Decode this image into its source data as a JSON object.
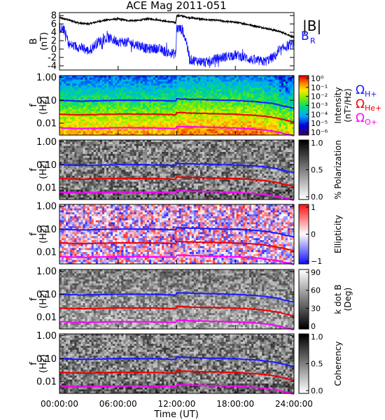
{
  "title": "ACE Mag 2011-051",
  "xlabel": "Time (UT)",
  "x_ticks": [
    "00:00:00",
    "06:00:00",
    "12:00:00",
    "18:00:00",
    "24:00:00"
  ],
  "x_tick_hours": [
    0,
    6,
    12,
    18,
    24
  ],
  "colors": {
    "bmag": "#000000",
    "br": "#1010ff",
    "omega_h": "#1a1aff",
    "omega_he": "#ee0000",
    "omega_o": "#ff00ff"
  },
  "field_legend": [
    {
      "label": "|B|",
      "color": "#000000"
    },
    {
      "label": "B",
      "sub": "R",
      "color": "#1010ff"
    }
  ],
  "gyro_legend": [
    {
      "label": "Ω",
      "sub": "H+",
      "color": "#1a1aff"
    },
    {
      "label": "Ω",
      "sub": "He+",
      "color": "#ee0000"
    },
    {
      "label": "Ω",
      "sub": "O+",
      "color": "#ff00ff"
    }
  ],
  "chart_data": [
    {
      "type": "line",
      "panel": "field",
      "ylabel": "B",
      "yunit": "(nT)",
      "ylim": [
        -5,
        8.7
      ],
      "y_ticks": [
        -4,
        -2,
        0,
        2,
        4,
        6,
        8
      ],
      "xlim_hours": [
        0,
        24
      ],
      "series": [
        {
          "name": "|B|",
          "color": "#000000",
          "x": [
            0,
            0.5,
            1,
            2,
            3,
            4,
            5,
            6,
            7,
            8,
            9,
            10,
            11,
            11.9,
            12.0,
            12.5,
            13,
            14,
            15,
            16,
            17,
            18,
            19,
            20,
            21,
            22,
            22.5,
            23,
            23.5,
            24
          ],
          "y": [
            7.5,
            7.2,
            6.9,
            6.2,
            6.0,
            6.6,
            7.0,
            7.2,
            6.8,
            6.8,
            7.2,
            7.0,
            6.6,
            6.3,
            8.0,
            7.9,
            7.6,
            7.3,
            7.0,
            6.9,
            6.6,
            6.4,
            6.0,
            5.5,
            5.0,
            4.5,
            4.2,
            3.8,
            3.3,
            2.8
          ]
        },
        {
          "name": "B_R",
          "color": "#1010ff",
          "x": [
            0,
            0.5,
            1,
            2,
            3,
            4,
            5,
            6,
            7,
            8,
            9,
            10,
            11,
            11.9,
            12.0,
            12.6,
            13,
            13.3,
            14,
            15,
            16,
            17,
            18,
            19,
            20,
            21,
            22,
            23,
            24
          ],
          "y": [
            5.2,
            4.4,
            1.0,
            0.5,
            -0.5,
            1.8,
            2.6,
            1.8,
            1.6,
            1.0,
            0.0,
            0.2,
            -0.8,
            -1.2,
            5.0,
            4.6,
            1.6,
            -2.5,
            -2.8,
            -3.2,
            -2.4,
            -1.8,
            -1.4,
            -2.0,
            -2.8,
            -3.0,
            -1.8,
            0.4,
            1.4
          ]
        }
      ]
    },
    {
      "type": "heatmap",
      "panel": "power",
      "ylabel": "f",
      "yunit": "(Hz)",
      "ylim": [
        0.003,
        1.2
      ],
      "y_log": true,
      "y_ticks": [
        "1.00",
        "0.10",
        "0.01"
      ],
      "colorbar": {
        "label": "Intensity",
        "unit": "(nT²/Hz)",
        "colormap": "rainbow",
        "ticks": [
          "10⁰",
          "10⁻¹",
          "10⁻²",
          "10⁻³",
          "10⁻⁴",
          "10⁻⁵",
          "10⁻⁶"
        ]
      }
    },
    {
      "type": "heatmap",
      "panel": "polarization",
      "ylabel": "f",
      "yunit": "(Hz)",
      "ylim": [
        0.003,
        1.2
      ],
      "y_log": true,
      "y_ticks": [
        "1.00",
        "0.10",
        "0.01"
      ],
      "colorbar": {
        "label": "% Polarization",
        "unit": "",
        "colormap": "gray",
        "ticks": [
          "1.0",
          "0.5",
          "0.0"
        ]
      }
    },
    {
      "type": "heatmap",
      "panel": "ellipticity",
      "ylabel": "f",
      "yunit": "(Hz)",
      "ylim": [
        0.003,
        1.2
      ],
      "y_log": true,
      "y_ticks": [
        "1.00",
        "0.10",
        "0.01"
      ],
      "colorbar": {
        "label": "Ellipticity",
        "unit": "",
        "colormap": "bwr",
        "ticks": [
          "1",
          "0",
          "−1"
        ]
      }
    },
    {
      "type": "heatmap",
      "panel": "kdotb",
      "ylabel": "f",
      "yunit": "(Hz)",
      "ylim": [
        0.003,
        1.2
      ],
      "y_log": true,
      "y_ticks": [
        "1.00",
        "0.10",
        "0.01"
      ],
      "colorbar": {
        "label": "k dot B",
        "unit": "(Deg)",
        "colormap": "gray_r",
        "ticks": [
          "90",
          "60",
          "30",
          "0"
        ]
      }
    },
    {
      "type": "heatmap",
      "panel": "coherency",
      "ylabel": "f",
      "yunit": "(Hz)",
      "ylim": [
        0.003,
        1.2
      ],
      "y_log": true,
      "y_ticks": [
        "1.00",
        "0.10",
        "0.01"
      ],
      "colorbar": {
        "label": "Coherency",
        "unit": "",
        "colormap": "gray",
        "ticks": [
          "1.0",
          "0.5",
          "0.0"
        ]
      }
    }
  ],
  "gyro_lines": {
    "hours": [
      0,
      2,
      4,
      6,
      8,
      10,
      11.9,
      12.0,
      14,
      16,
      18,
      20,
      21,
      22,
      23,
      24
    ],
    "omega_h_hz": [
      0.1,
      0.092,
      0.095,
      0.1,
      0.1,
      0.098,
      0.092,
      0.115,
      0.108,
      0.103,
      0.098,
      0.088,
      0.08,
      0.07,
      0.055,
      0.045
    ],
    "omega_he_hz": [
      0.025,
      0.023,
      0.024,
      0.025,
      0.025,
      0.0245,
      0.023,
      0.029,
      0.027,
      0.026,
      0.0245,
      0.022,
      0.02,
      0.0175,
      0.014,
      0.011
    ],
    "omega_o_hz": [
      0.0063,
      0.0058,
      0.006,
      0.0063,
      0.0063,
      0.0061,
      0.0058,
      0.0072,
      0.0068,
      0.0065,
      0.0061,
      0.0055,
      0.005,
      0.0044,
      0.0035,
      0.0028
    ]
  }
}
